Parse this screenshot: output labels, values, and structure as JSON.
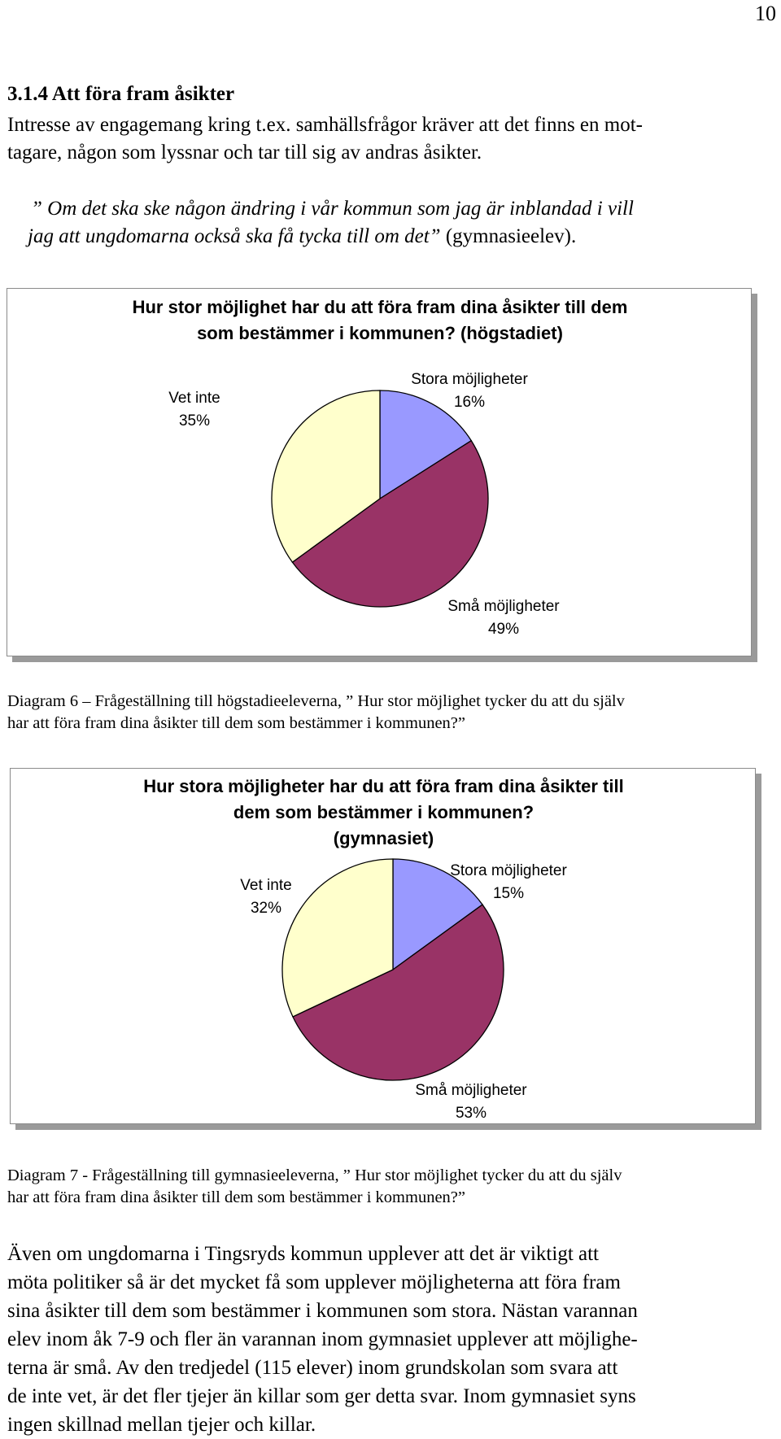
{
  "page": {
    "number": "10",
    "section_heading": "3.1.4 Att föra fram åsikter",
    "intro_line1": "Intresse av engagemang kring t.ex. samhällsfrågor kräver att det finns en mot-",
    "intro_line2": "tagare, någon som lyssnar och tar till sig av andras åsikter.",
    "quote_line1": "” Om det ska ske någon ändring i vår kommun som jag är inblandad i vill",
    "quote_line2_italic": "jag att ungdomarna också ska få tycka till om det”",
    "quote_line2_source": " (gymnasieelev).",
    "caption1_line1": "Diagram 6 – Frågeställning till högstadieeleverna, ” Hur stor möjlighet tycker du att du själv",
    "caption1_line2": "har att föra fram dina åsikter till dem som bestämmer i kommunen?”",
    "caption2_line1": "Diagram 7 - Frågeställning till gymnasieeleverna, ” Hur stor möjlighet tycker du att du själv",
    "caption2_line2": "har att föra fram dina åsikter till dem som bestämmer i kommunen?”",
    "body_lines": [
      "Även om ungdomarna i Tingsryds kommun upplever att det är viktigt att",
      "möta politiker så är det mycket få som upplever möjligheterna att föra fram",
      "sina åsikter till dem som bestämmer i kommunen som stora. Nästan varannan",
      "elev inom åk 7-9 och fler än varannan inom gymnasiet upplever att möjlighe-",
      "terna är små. Av den tredjedel (115 elever) inom grundskolan som svara att",
      "de inte vet, är det fler tjejer än killar som ger detta svar. Inom gymnasiet syns",
      "ingen skillnad mellan tjejer och killar."
    ]
  },
  "chart_data": [
    {
      "type": "pie",
      "title_line1": "Hur stor möjlighet har du att föra fram dina åsikter till dem",
      "title_line2": "som bestämmer i kommunen? (högstadiet)",
      "categories": [
        "Stora möjligheter",
        "Små möjligheter",
        "Vet inte"
      ],
      "values": [
        16,
        49,
        35
      ],
      "value_labels": [
        "16%",
        "49%",
        "35%"
      ],
      "colors": [
        "#9999ff",
        "#993366",
        "#ffffcc"
      ],
      "legend": "none"
    },
    {
      "type": "pie",
      "title_line1": "Hur stora möjligheter har du att föra fram dina åsikter till",
      "title_line2": "dem som bestämmer i kommunen?",
      "title_line3": "(gymnasiet)",
      "categories": [
        "Stora möjligheter",
        "Små möjligheter",
        "Vet inte"
      ],
      "values": [
        15,
        53,
        32
      ],
      "value_labels": [
        "15%",
        "53%",
        "32%"
      ],
      "colors": [
        "#9999ff",
        "#993366",
        "#ffffcc"
      ],
      "legend": "none"
    }
  ]
}
